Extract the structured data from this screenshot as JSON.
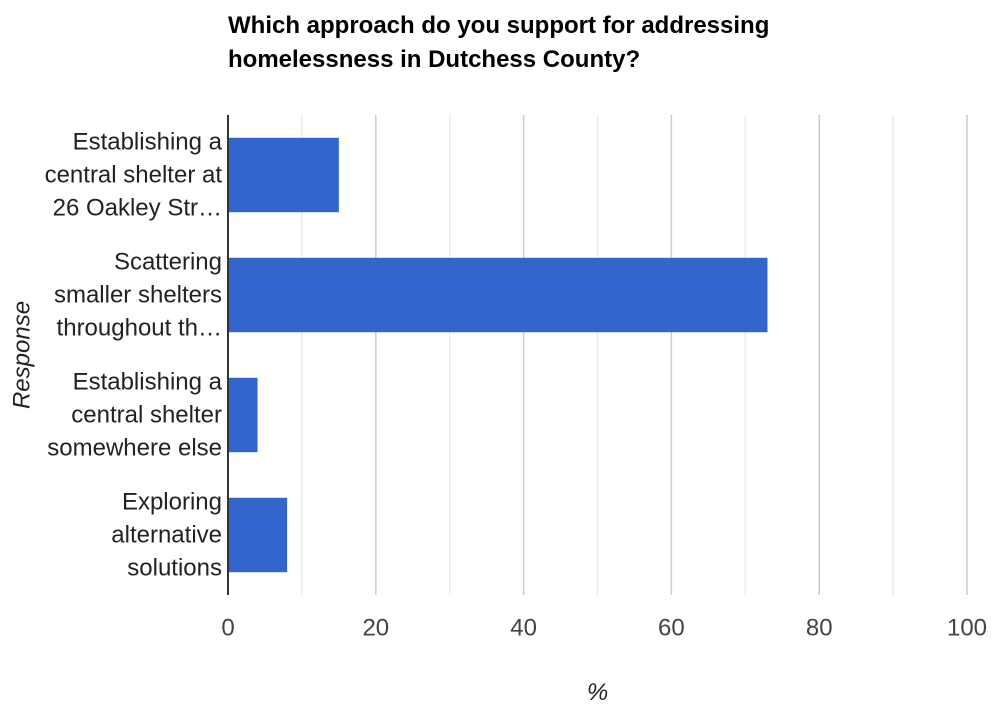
{
  "chart_data": {
    "type": "bar",
    "orientation": "horizontal",
    "title_lines": [
      "Which approach do you support for addressing",
      "homelessness in Dutchess County?"
    ],
    "xlabel": "%",
    "ylabel": "Response",
    "xlim": [
      0,
      100
    ],
    "x_ticks": [
      0,
      20,
      40,
      60,
      80,
      100
    ],
    "grid": true,
    "categories": [
      [
        "Establishing a",
        "central shelter at",
        "26 Oakley Str…"
      ],
      [
        "Scattering",
        "smaller shelters",
        "throughout th…"
      ],
      [
        "Establishing a",
        "central shelter",
        "somewhere else"
      ],
      [
        "Exploring",
        "alternative",
        "solutions"
      ]
    ],
    "values": [
      15,
      73,
      4,
      8
    ],
    "bar_color": "#3366cc",
    "grid_color": "#cccccc",
    "minor_grid_color": "#ebebeb"
  }
}
